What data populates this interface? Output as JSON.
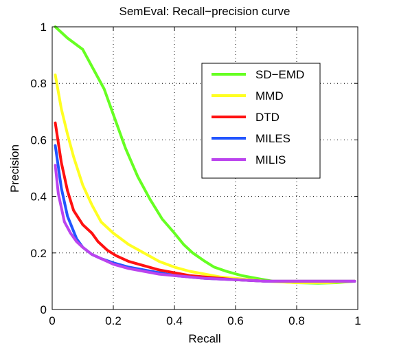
{
  "chart_data": {
    "type": "line",
    "title": "SemEval: Recall−precision curve",
    "xlabel": "Recall",
    "ylabel": "Precision",
    "xlim": [
      0,
      1
    ],
    "ylim": [
      0,
      1
    ],
    "xticks": [
      0,
      0.2,
      0.4,
      0.6,
      0.8,
      1
    ],
    "xtick_labels": [
      "0",
      "0.2",
      "0.4",
      "0.6",
      "0.8",
      "1"
    ],
    "yticks": [
      0,
      0.2,
      0.4,
      0.6,
      0.8,
      1
    ],
    "ytick_labels": [
      "0",
      "0.2",
      "0.4",
      "0.6",
      "0.8",
      "1"
    ],
    "grid": "dotted",
    "legend_position": "top-right",
    "series": [
      {
        "name": "SD−EMD",
        "color": "#66ff22",
        "x": [
          0.01,
          0.05,
          0.1,
          0.13,
          0.17,
          0.2,
          0.24,
          0.28,
          0.32,
          0.36,
          0.4,
          0.43,
          0.46,
          0.5,
          0.53,
          0.57,
          0.62,
          0.67,
          0.72,
          0.8,
          0.87,
          0.93,
          0.99
        ],
        "y": [
          1.0,
          0.96,
          0.92,
          0.86,
          0.78,
          0.69,
          0.57,
          0.47,
          0.39,
          0.32,
          0.27,
          0.23,
          0.2,
          0.17,
          0.15,
          0.135,
          0.12,
          0.11,
          0.1,
          0.095,
          0.093,
          0.095,
          0.1
        ]
      },
      {
        "name": "MMD",
        "color": "#ffff22",
        "x": [
          0.01,
          0.03,
          0.05,
          0.07,
          0.1,
          0.13,
          0.16,
          0.2,
          0.25,
          0.3,
          0.35,
          0.4,
          0.45,
          0.5,
          0.55,
          0.6,
          0.7,
          0.8,
          0.9,
          0.99
        ],
        "y": [
          0.83,
          0.71,
          0.62,
          0.54,
          0.44,
          0.37,
          0.31,
          0.27,
          0.23,
          0.2,
          0.17,
          0.15,
          0.135,
          0.125,
          0.115,
          0.11,
          0.1,
          0.095,
          0.095,
          0.1
        ]
      },
      {
        "name": "DTD",
        "color": "#ff1111",
        "x": [
          0.01,
          0.03,
          0.05,
          0.07,
          0.1,
          0.13,
          0.15,
          0.18,
          0.21,
          0.25,
          0.3,
          0.35,
          0.4,
          0.45,
          0.5,
          0.55,
          0.6,
          0.7,
          0.8,
          0.9,
          0.99
        ],
        "y": [
          0.66,
          0.52,
          0.42,
          0.35,
          0.3,
          0.27,
          0.24,
          0.21,
          0.19,
          0.17,
          0.155,
          0.14,
          0.13,
          0.12,
          0.115,
          0.11,
          0.105,
          0.1,
          0.1,
          0.1,
          0.1
        ]
      },
      {
        "name": "MILES",
        "color": "#2255ff",
        "x": [
          0.01,
          0.03,
          0.05,
          0.08,
          0.1,
          0.13,
          0.16,
          0.2,
          0.25,
          0.3,
          0.35,
          0.4,
          0.5,
          0.6,
          0.7,
          0.8,
          0.9,
          0.99
        ],
        "y": [
          0.58,
          0.43,
          0.33,
          0.25,
          0.22,
          0.195,
          0.18,
          0.165,
          0.15,
          0.14,
          0.13,
          0.12,
          0.11,
          0.105,
          0.1,
          0.1,
          0.1,
          0.1
        ]
      },
      {
        "name": "MILIS",
        "color": "#bb44ee",
        "x": [
          0.01,
          0.02,
          0.04,
          0.06,
          0.08,
          0.1,
          0.13,
          0.16,
          0.2,
          0.25,
          0.3,
          0.35,
          0.4,
          0.5,
          0.6,
          0.7,
          0.8,
          0.9,
          0.99
        ],
        "y": [
          0.51,
          0.41,
          0.31,
          0.27,
          0.24,
          0.22,
          0.195,
          0.18,
          0.16,
          0.145,
          0.135,
          0.125,
          0.12,
          0.11,
          0.105,
          0.1,
          0.1,
          0.1,
          0.1
        ]
      }
    ]
  }
}
